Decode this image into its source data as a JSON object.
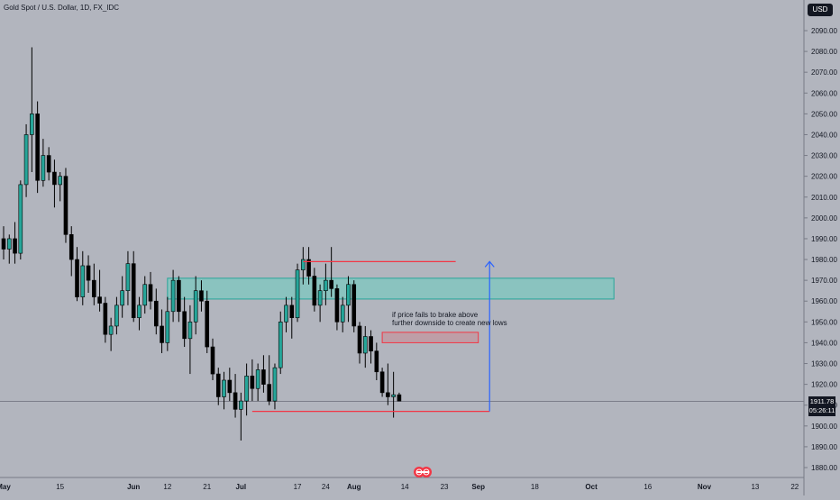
{
  "header": {
    "title": "Gold Spot / U.S. Dollar, 1D, FX_IDC",
    "currency": "USD"
  },
  "note": {
    "line1": "if price fails to brake above",
    "line2": "further downside to create new lows"
  },
  "price_tag": {
    "price": "1911.78",
    "countdown": "05:26:11"
  },
  "colors": {
    "background": "#b2b5be",
    "up": "#26a69a",
    "down": "#000000",
    "zone_fill": "#7fc7bf",
    "zone_border": "#26a69a",
    "red_line": "#f23645",
    "blue_arrow": "#2962ff",
    "axis_text": "#131722"
  },
  "icons": {
    "logo": "tradingview-logo-icon"
  },
  "chart_data": {
    "type": "candlestick",
    "title": "Gold Spot / U.S. Dollar, 1D, FX_IDC",
    "ylim": [
      1875,
      2100
    ],
    "y_ticks": [
      2090,
      2080,
      2070,
      2060,
      2050,
      2040,
      2030,
      2020,
      2010,
      2000,
      1990,
      1980,
      1970,
      1960,
      1950,
      1940,
      1930,
      1920,
      1910,
      1900,
      1890,
      1880
    ],
    "x_ticks": [
      {
        "label": "May",
        "bar": 0
      },
      {
        "label": "15",
        "bar": 10
      },
      {
        "label": "Jun",
        "bar": 23
      },
      {
        "label": "12",
        "bar": 29
      },
      {
        "label": "21",
        "bar": 36
      },
      {
        "label": "Jul",
        "bar": 42
      },
      {
        "label": "17",
        "bar": 52
      },
      {
        "label": "24",
        "bar": 57
      },
      {
        "label": "Aug",
        "bar": 62
      },
      {
        "label": "14",
        "bar": 71
      },
      {
        "label": "23",
        "bar": 78
      },
      {
        "label": "Sep",
        "bar": 84
      },
      {
        "label": "18",
        "bar": 94
      },
      {
        "label": "Oct",
        "bar": 104
      },
      {
        "label": "16",
        "bar": 114
      },
      {
        "label": "Nov",
        "bar": 124
      },
      {
        "label": "13",
        "bar": 133
      },
      {
        "label": "22",
        "bar": 140
      }
    ],
    "candles": [
      [
        1990,
        1996,
        1980,
        1985
      ],
      [
        1985,
        1992,
        1978,
        1990
      ],
      [
        1990,
        1998,
        1978,
        1983
      ],
      [
        1983,
        2018,
        1980,
        2016
      ],
      [
        2016,
        2045,
        2010,
        2040
      ],
      [
        2040,
        2082,
        2022,
        2050
      ],
      [
        2050,
        2056,
        2012,
        2018
      ],
      [
        2018,
        2038,
        2015,
        2030
      ],
      [
        2030,
        2034,
        2018,
        2022
      ],
      [
        2022,
        2028,
        2005,
        2016
      ],
      [
        2016,
        2022,
        2008,
        2020
      ],
      [
        2020,
        2024,
        1988,
        1992
      ],
      [
        1992,
        1996,
        1972,
        1980
      ],
      [
        1980,
        1986,
        1960,
        1962
      ],
      [
        1962,
        1984,
        1958,
        1977
      ],
      [
        1977,
        1982,
        1964,
        1970
      ],
      [
        1970,
        1978,
        1958,
        1962
      ],
      [
        1962,
        1975,
        1955,
        1959
      ],
      [
        1959,
        1962,
        1940,
        1944
      ],
      [
        1944,
        1952,
        1936,
        1948
      ],
      [
        1948,
        1962,
        1944,
        1958
      ],
      [
        1958,
        1972,
        1952,
        1965
      ],
      [
        1965,
        1984,
        1958,
        1978
      ],
      [
        1978,
        1984,
        1950,
        1952
      ],
      [
        1952,
        1962,
        1946,
        1958
      ],
      [
        1958,
        1972,
        1954,
        1968
      ],
      [
        1968,
        1974,
        1956,
        1960
      ],
      [
        1960,
        1966,
        1944,
        1948
      ],
      [
        1948,
        1956,
        1935,
        1940
      ],
      [
        1940,
        1962,
        1936,
        1955
      ],
      [
        1955,
        1975,
        1950,
        1970
      ],
      [
        1970,
        1972,
        1950,
        1955
      ],
      [
        1955,
        1962,
        1938,
        1942
      ],
      [
        1942,
        1958,
        1925,
        1950
      ],
      [
        1950,
        1972,
        1944,
        1965
      ],
      [
        1965,
        1970,
        1955,
        1960
      ],
      [
        1960,
        1965,
        1935,
        1938
      ],
      [
        1938,
        1942,
        1922,
        1925
      ],
      [
        1925,
        1928,
        1910,
        1914
      ],
      [
        1914,
        1926,
        1908,
        1922
      ],
      [
        1922,
        1928,
        1912,
        1916
      ],
      [
        1916,
        1925,
        1904,
        1908
      ],
      [
        1908,
        1916,
        1893,
        1912
      ],
      [
        1912,
        1930,
        1905,
        1924
      ],
      [
        1924,
        1932,
        1912,
        1918
      ],
      [
        1918,
        1930,
        1912,
        1927
      ],
      [
        1927,
        1934,
        1916,
        1920
      ],
      [
        1920,
        1934,
        1910,
        1912
      ],
      [
        1912,
        1930,
        1908,
        1928
      ],
      [
        1928,
        1955,
        1925,
        1950
      ],
      [
        1950,
        1962,
        1945,
        1958
      ],
      [
        1958,
        1962,
        1942,
        1952
      ],
      [
        1952,
        1978,
        1950,
        1975
      ],
      [
        1975,
        1986,
        1968,
        1980
      ],
      [
        1980,
        1986,
        1968,
        1972
      ],
      [
        1972,
        1976,
        1955,
        1958
      ],
      [
        1958,
        1968,
        1950,
        1965
      ],
      [
        1965,
        1978,
        1958,
        1970
      ],
      [
        1970,
        1986,
        1962,
        1966
      ],
      [
        1966,
        1968,
        1946,
        1950
      ],
      [
        1950,
        1962,
        1945,
        1958
      ],
      [
        1958,
        1972,
        1950,
        1968
      ],
      [
        1968,
        1970,
        1945,
        1948
      ],
      [
        1948,
        1950,
        1930,
        1935
      ],
      [
        1935,
        1948,
        1928,
        1943
      ],
      [
        1943,
        1946,
        1930,
        1936
      ],
      [
        1936,
        1940,
        1922,
        1926
      ],
      [
        1926,
        1928,
        1914,
        1916
      ],
      [
        1916,
        1930,
        1910,
        1914
      ],
      [
        1914,
        1926,
        1904,
        1915
      ],
      [
        1915,
        1916,
        1912,
        1912
      ]
    ],
    "zones": [
      {
        "type": "rect",
        "from_bar": 29,
        "to_bar": 108,
        "top": 1971,
        "bottom": 1961,
        "color": "green"
      },
      {
        "type": "rect",
        "from_bar": 67,
        "to_bar": 84,
        "top": 1945,
        "bottom": 1940,
        "color": "red"
      }
    ],
    "lines": [
      {
        "from_bar": 53,
        "to_bar": 80,
        "y": 1979,
        "color": "red"
      },
      {
        "from_bar": 44,
        "to_bar": 86,
        "y": 1907,
        "color": "red"
      }
    ],
    "arrow": {
      "bar": 86,
      "from_y": 1907,
      "to_y": 1979
    },
    "last_price": 1911.78
  }
}
